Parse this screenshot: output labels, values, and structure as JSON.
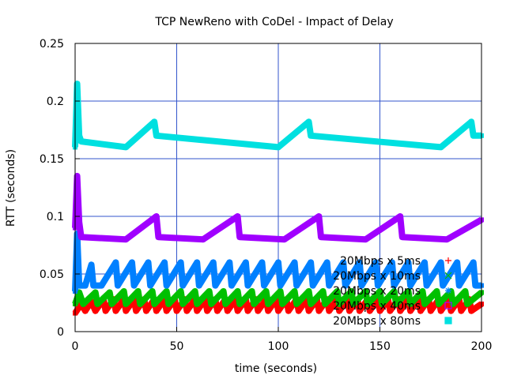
{
  "chart_data": {
    "type": "scatter",
    "title": "TCP NewReno with CoDel - Impact of Delay",
    "xlabel": "time (seconds)",
    "ylabel": "RTT (seconds)",
    "xlim": [
      0,
      200
    ],
    "ylim": [
      0,
      0.25
    ],
    "xticks": [
      0,
      50,
      100,
      150,
      200
    ],
    "xtick_labels": [
      "0",
      "50",
      "100",
      "150",
      "200"
    ],
    "yticks": [
      0,
      0.05,
      0.1,
      0.15,
      0.2,
      0.25
    ],
    "ytick_labels": [
      "0",
      "0.05",
      "0.1",
      "0.15",
      "0.2",
      "0.25"
    ],
    "grid": true,
    "legend_position": "bottom-right",
    "series": [
      {
        "name": "20Mbps x 5ms",
        "color": "#ff0000",
        "marker": "plus",
        "points": [
          [
            0,
            0.016
          ],
          [
            3,
            0.024
          ],
          [
            5,
            0.018
          ],
          [
            8,
            0.026
          ],
          [
            10,
            0.018
          ],
          [
            14,
            0.028
          ],
          [
            15,
            0.018
          ],
          [
            19,
            0.028
          ],
          [
            20,
            0.018
          ],
          [
            24,
            0.028
          ],
          [
            25,
            0.018
          ],
          [
            29,
            0.028
          ],
          [
            30,
            0.018
          ],
          [
            34,
            0.028
          ],
          [
            35,
            0.018
          ],
          [
            39,
            0.028
          ],
          [
            40,
            0.018
          ],
          [
            44,
            0.028
          ],
          [
            45,
            0.018
          ],
          [
            49,
            0.028
          ],
          [
            50,
            0.018
          ],
          [
            54,
            0.028
          ],
          [
            55,
            0.018
          ],
          [
            59,
            0.028
          ],
          [
            60,
            0.018
          ],
          [
            64,
            0.028
          ],
          [
            65,
            0.018
          ],
          [
            69,
            0.028
          ],
          [
            70,
            0.018
          ],
          [
            74,
            0.028
          ],
          [
            75,
            0.018
          ],
          [
            79,
            0.028
          ],
          [
            80,
            0.018
          ],
          [
            84,
            0.028
          ],
          [
            85,
            0.018
          ],
          [
            89,
            0.028
          ],
          [
            90,
            0.018
          ],
          [
            94,
            0.028
          ],
          [
            95,
            0.018
          ],
          [
            99,
            0.028
          ],
          [
            100,
            0.018
          ],
          [
            104,
            0.028
          ],
          [
            105,
            0.018
          ],
          [
            109,
            0.028
          ],
          [
            110,
            0.018
          ],
          [
            114,
            0.028
          ],
          [
            115,
            0.018
          ],
          [
            119,
            0.028
          ],
          [
            120,
            0.018
          ],
          [
            124,
            0.028
          ],
          [
            125,
            0.018
          ],
          [
            129,
            0.028
          ],
          [
            130,
            0.018
          ],
          [
            134,
            0.028
          ],
          [
            135,
            0.018
          ],
          [
            139,
            0.028
          ],
          [
            140,
            0.018
          ],
          [
            144,
            0.028
          ],
          [
            145,
            0.018
          ],
          [
            149,
            0.028
          ],
          [
            150,
            0.018
          ],
          [
            154,
            0.028
          ],
          [
            155,
            0.018
          ],
          [
            159,
            0.028
          ],
          [
            160,
            0.018
          ],
          [
            164,
            0.028
          ],
          [
            165,
            0.018
          ],
          [
            169,
            0.028
          ],
          [
            170,
            0.018
          ],
          [
            174,
            0.028
          ],
          [
            175,
            0.018
          ],
          [
            179,
            0.028
          ],
          [
            180,
            0.018
          ],
          [
            184,
            0.028
          ],
          [
            185,
            0.018
          ],
          [
            189,
            0.028
          ],
          [
            190,
            0.018
          ],
          [
            194,
            0.028
          ],
          [
            195,
            0.018
          ],
          [
            200,
            0.024
          ]
        ]
      },
      {
        "name": "20Mbps x 10ms",
        "color": "#00c000",
        "marker": "cross",
        "points": [
          [
            0,
            0.024
          ],
          [
            2,
            0.034
          ],
          [
            4,
            0.024
          ],
          [
            10,
            0.034
          ],
          [
            11,
            0.024
          ],
          [
            17,
            0.034
          ],
          [
            18,
            0.024
          ],
          [
            24,
            0.035
          ],
          [
            25,
            0.024
          ],
          [
            31,
            0.035
          ],
          [
            32,
            0.024
          ],
          [
            38,
            0.035
          ],
          [
            39,
            0.024
          ],
          [
            45,
            0.035
          ],
          [
            46,
            0.024
          ],
          [
            52,
            0.035
          ],
          [
            53,
            0.024
          ],
          [
            59,
            0.035
          ],
          [
            60,
            0.024
          ],
          [
            66,
            0.035
          ],
          [
            67,
            0.024
          ],
          [
            73,
            0.035
          ],
          [
            74,
            0.024
          ],
          [
            80,
            0.035
          ],
          [
            81,
            0.024
          ],
          [
            87,
            0.035
          ],
          [
            88,
            0.024
          ],
          [
            94,
            0.035
          ],
          [
            95,
            0.024
          ],
          [
            101,
            0.035
          ],
          [
            102,
            0.024
          ],
          [
            108,
            0.035
          ],
          [
            109,
            0.024
          ],
          [
            115,
            0.035
          ],
          [
            116,
            0.024
          ],
          [
            122,
            0.035
          ],
          [
            123,
            0.024
          ],
          [
            129,
            0.035
          ],
          [
            130,
            0.024
          ],
          [
            136,
            0.035
          ],
          [
            137,
            0.024
          ],
          [
            143,
            0.035
          ],
          [
            144,
            0.024
          ],
          [
            150,
            0.035
          ],
          [
            151,
            0.024
          ],
          [
            157,
            0.035
          ],
          [
            158,
            0.024
          ],
          [
            164,
            0.035
          ],
          [
            165,
            0.024
          ],
          [
            171,
            0.035
          ],
          [
            172,
            0.024
          ],
          [
            178,
            0.035
          ],
          [
            179,
            0.024
          ],
          [
            185,
            0.035
          ],
          [
            186,
            0.024
          ],
          [
            192,
            0.035
          ],
          [
            193,
            0.024
          ],
          [
            200,
            0.034
          ]
        ]
      },
      {
        "name": "20Mbps x 20ms",
        "color": "#0080ff",
        "marker": "star",
        "points": [
          [
            0,
            0.035
          ],
          [
            1,
            0.085
          ],
          [
            2,
            0.04
          ],
          [
            5,
            0.04
          ],
          [
            8,
            0.058
          ],
          [
            9,
            0.04
          ],
          [
            13,
            0.04
          ],
          [
            20,
            0.06
          ],
          [
            21,
            0.04
          ],
          [
            28,
            0.06
          ],
          [
            29,
            0.04
          ],
          [
            36,
            0.06
          ],
          [
            37,
            0.04
          ],
          [
            44,
            0.06
          ],
          [
            45,
            0.04
          ],
          [
            52,
            0.06
          ],
          [
            53,
            0.04
          ],
          [
            60,
            0.06
          ],
          [
            61,
            0.04
          ],
          [
            68,
            0.06
          ],
          [
            69,
            0.04
          ],
          [
            76,
            0.06
          ],
          [
            77,
            0.04
          ],
          [
            84,
            0.06
          ],
          [
            85,
            0.04
          ],
          [
            92,
            0.06
          ],
          [
            93,
            0.04
          ],
          [
            100,
            0.06
          ],
          [
            101,
            0.04
          ],
          [
            108,
            0.06
          ],
          [
            109,
            0.04
          ],
          [
            116,
            0.06
          ],
          [
            117,
            0.04
          ],
          [
            124,
            0.06
          ],
          [
            125,
            0.04
          ],
          [
            132,
            0.06
          ],
          [
            133,
            0.04
          ],
          [
            140,
            0.06
          ],
          [
            141,
            0.04
          ],
          [
            148,
            0.06
          ],
          [
            149,
            0.04
          ],
          [
            156,
            0.06
          ],
          [
            157,
            0.04
          ],
          [
            164,
            0.06
          ],
          [
            165,
            0.04
          ],
          [
            172,
            0.06
          ],
          [
            173,
            0.04
          ],
          [
            180,
            0.06
          ],
          [
            181,
            0.04
          ],
          [
            188,
            0.06
          ],
          [
            189,
            0.04
          ],
          [
            196,
            0.06
          ],
          [
            197,
            0.04
          ],
          [
            200,
            0.04
          ]
        ]
      },
      {
        "name": "20Mbps x 40ms",
        "color": "#a000ff",
        "marker": "square",
        "points": [
          [
            0,
            0.09
          ],
          [
            1,
            0.135
          ],
          [
            2,
            0.095
          ],
          [
            3,
            0.082
          ],
          [
            25,
            0.08
          ],
          [
            40,
            0.1
          ],
          [
            41,
            0.082
          ],
          [
            63,
            0.08
          ],
          [
            80,
            0.1
          ],
          [
            81,
            0.082
          ],
          [
            103,
            0.08
          ],
          [
            120,
            0.1
          ],
          [
            121,
            0.082
          ],
          [
            143,
            0.08
          ],
          [
            160,
            0.1
          ],
          [
            161,
            0.082
          ],
          [
            183,
            0.08
          ],
          [
            200,
            0.097
          ]
        ]
      },
      {
        "name": "20Mbps x 80ms",
        "color": "#00e0e0",
        "marker": "square-filled",
        "points": [
          [
            0,
            0.16
          ],
          [
            1,
            0.215
          ],
          [
            2,
            0.17
          ],
          [
            3,
            0.165
          ],
          [
            25,
            0.16
          ],
          [
            39,
            0.182
          ],
          [
            40,
            0.17
          ],
          [
            100,
            0.16
          ],
          [
            115,
            0.182
          ],
          [
            116,
            0.17
          ],
          [
            180,
            0.16
          ],
          [
            195,
            0.182
          ],
          [
            196,
            0.17
          ],
          [
            200,
            0.17
          ]
        ]
      }
    ]
  }
}
